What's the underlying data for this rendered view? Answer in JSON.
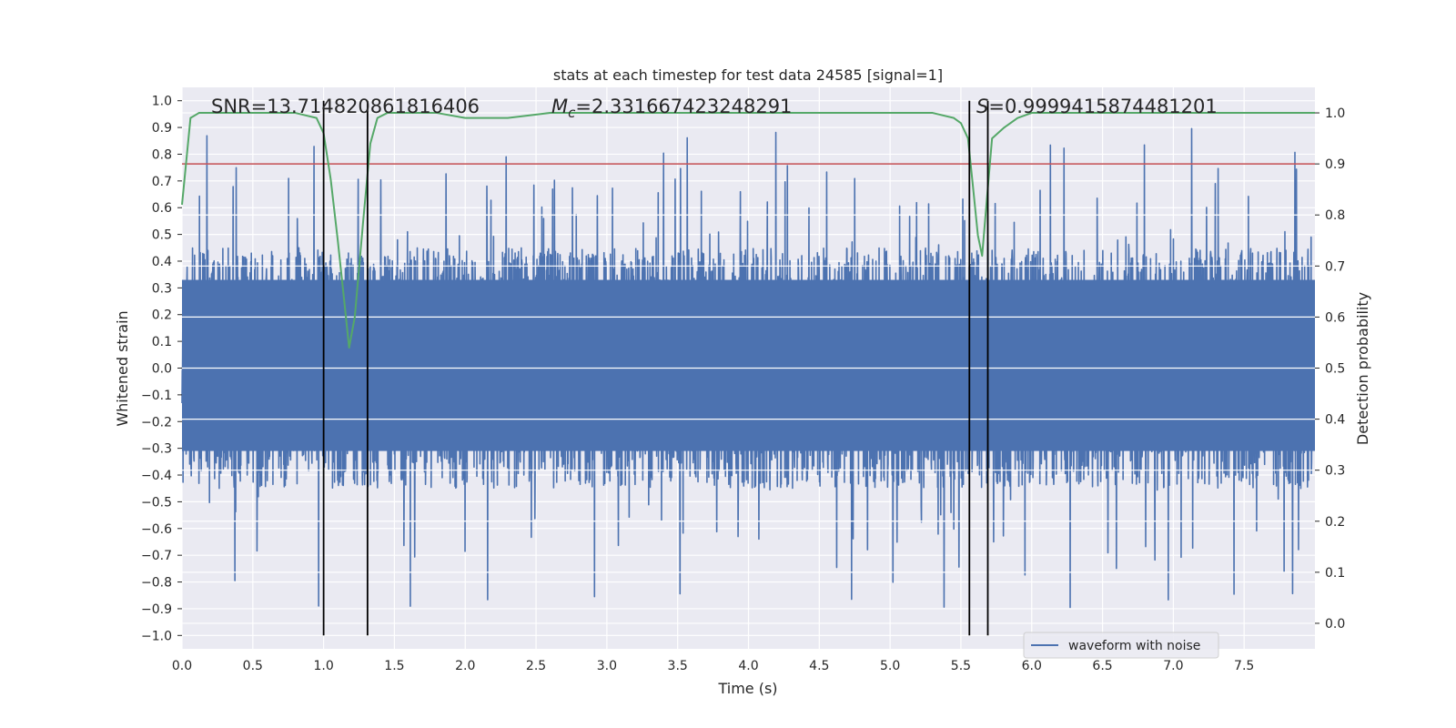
{
  "chart_data": {
    "type": "line",
    "title": "stats at each timestep for test data 24585 [signal=1]",
    "xlabel": "Time (s)",
    "ylabel": "Whitened strain",
    "y2label": "Detection probability",
    "xlim": [
      0.0,
      8.0
    ],
    "ylim": [
      -1.05,
      1.05
    ],
    "y2lim": [
      -0.05,
      1.05
    ],
    "x_ticks": [
      0.0,
      0.5,
      1.0,
      1.5,
      2.0,
      2.5,
      3.0,
      3.5,
      4.0,
      4.5,
      5.0,
      5.5,
      6.0,
      6.5,
      7.0,
      7.5
    ],
    "y_ticks": [
      1.0,
      0.9,
      0.8,
      0.7,
      0.6,
      0.5,
      0.4,
      0.3,
      0.2,
      0.1,
      0.0,
      -0.1,
      -0.2,
      -0.3,
      -0.4,
      -0.5,
      -0.6,
      -0.7,
      -0.8,
      -0.9,
      -1.0
    ],
    "y2_ticks": [
      1.0,
      0.9,
      0.8,
      0.7,
      0.6,
      0.5,
      0.4,
      0.3,
      0.2,
      0.1,
      0.0
    ],
    "grid": true,
    "legend_placement": "lower-right",
    "annotations": {
      "snr": "SNR=13.714820861816406",
      "mc": "=2.331667423248291",
      "mc_symbol": "M",
      "mc_sub": "c",
      "s": "=0.9999415874481201",
      "s_symbol": "S"
    },
    "series": [
      {
        "name": "waveform with noise",
        "color": "#4c72b0",
        "kind": "noise",
        "x_range": [
          0.0,
          8.0
        ],
        "typical_amplitude": 0.45,
        "max_amplitude": 1.0
      },
      {
        "color": "#55a868",
        "axis": "right",
        "x": [
          0.0,
          0.06,
          0.12,
          0.3,
          0.5,
          0.8,
          0.95,
          1.0,
          1.05,
          1.1,
          1.15,
          1.18,
          1.22,
          1.28,
          1.33,
          1.38,
          1.45,
          1.6,
          1.8,
          2.0,
          2.3,
          2.6,
          3.0,
          3.5,
          4.0,
          4.5,
          5.0,
          5.3,
          5.45,
          5.5,
          5.55,
          5.58,
          5.62,
          5.65,
          5.68,
          5.72,
          5.8,
          5.9,
          6.0,
          6.2,
          6.5,
          7.0,
          7.5,
          7.8,
          8.0
        ],
        "y": [
          0.82,
          0.99,
          1.0,
          1.0,
          1.0,
          1.0,
          0.99,
          0.96,
          0.87,
          0.75,
          0.62,
          0.54,
          0.6,
          0.79,
          0.94,
          0.99,
          1.0,
          1.0,
          1.0,
          0.99,
          0.99,
          1.0,
          1.0,
          1.0,
          1.0,
          1.0,
          1.0,
          1.0,
          0.99,
          0.98,
          0.95,
          0.87,
          0.76,
          0.72,
          0.82,
          0.95,
          0.97,
          0.99,
          1.0,
          1.0,
          1.0,
          1.0,
          1.0,
          1.0,
          1.0
        ]
      }
    ],
    "threshold": {
      "value": 0.9,
      "axis": "right",
      "color": "#c44e52"
    },
    "vlines": [
      {
        "x": 1.0,
        "ymin": -1.0,
        "ymax": 1.0
      },
      {
        "x": 1.31,
        "ymin": -1.0,
        "ymax": 1.0
      },
      {
        "x": 5.56,
        "ymin": -1.0,
        "ymax": 1.0
      },
      {
        "x": 5.69,
        "ymin": -1.0,
        "ymax": 1.0
      }
    ]
  }
}
